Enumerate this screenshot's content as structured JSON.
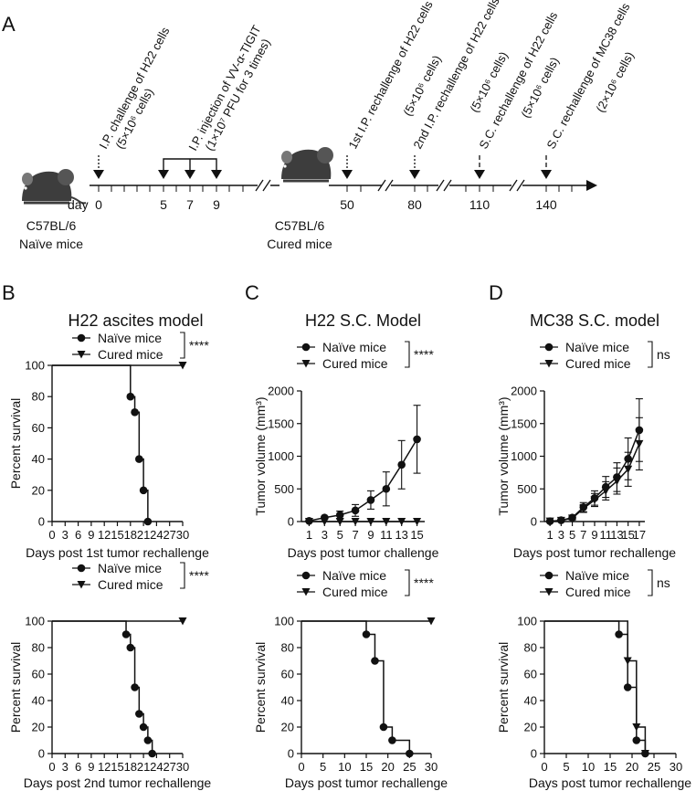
{
  "panel_labels": [
    "A",
    "B",
    "C",
    "D"
  ],
  "timeline": {
    "day_label": "day",
    "days": [
      "0",
      "5",
      "7",
      "9",
      "50",
      "80",
      "110",
      "140"
    ],
    "mouse_naive_label": "C57BL/6",
    "mouse_naive_sub": "Naïve mice",
    "mouse_cured_label": "C57BL/6",
    "mouse_cured_sub": "Cured mice",
    "annotations": [
      {
        "line1": "I.P. challenge of H22 cells",
        "line2": "(5×10⁶ cells)"
      },
      {
        "line1": "I.P. injection of VV-α-TIGIT",
        "line2": "(1×10⁷ PFU for 3 times)"
      },
      {
        "line1": "1st I.P. rechallenge of H22 cells",
        "line2": "(5×10⁶ cells)"
      },
      {
        "line1": "2nd I.P. rechallenge of H22 cells",
        "line2": "(5×10⁶ cells)"
      },
      {
        "line1": "S.C. rechallenge of H22 cells",
        "line2": "(5×10⁶ cells)"
      },
      {
        "line1": "S.C. rechallenge of MC38 cells",
        "line2": "(2×10⁶ cells)"
      }
    ]
  },
  "chart_data": [
    {
      "id": "b1",
      "type": "line",
      "step": true,
      "title": "H22 ascites model",
      "xlabel": "Days post 1st tumor rechallenge",
      "ylabel": "Percent survival",
      "xlim": [
        0,
        30
      ],
      "ylim": [
        0,
        100
      ],
      "xticks": [
        "0",
        "3",
        "6",
        "9",
        "12",
        "15",
        "18",
        "21",
        "24",
        "27",
        "30"
      ],
      "yticks": [
        "0",
        "20",
        "40",
        "60",
        "80",
        "100"
      ],
      "significance": "****",
      "series": [
        {
          "name": "Naïve mice",
          "marker": "circle",
          "x": [
            0,
            18,
            19,
            20,
            21,
            22
          ],
          "y": [
            100,
            80,
            70,
            40,
            20,
            0
          ]
        },
        {
          "name": "Cured mice",
          "marker": "triangle",
          "x": [
            0,
            30
          ],
          "y": [
            100,
            100
          ]
        }
      ]
    },
    {
      "id": "b2",
      "type": "line",
      "step": true,
      "title": "",
      "xlabel": "Days post 2nd tumor rechallenge",
      "ylabel": "Percent survival",
      "xlim": [
        0,
        30
      ],
      "ylim": [
        0,
        100
      ],
      "xticks": [
        "0",
        "3",
        "6",
        "9",
        "12",
        "15",
        "18",
        "21",
        "24",
        "27",
        "30"
      ],
      "yticks": [
        "0",
        "20",
        "40",
        "60",
        "80",
        "100"
      ],
      "significance": "****",
      "series": [
        {
          "name": "Naïve mice",
          "marker": "circle",
          "x": [
            0,
            17,
            18,
            19,
            20,
            21,
            22,
            23
          ],
          "y": [
            100,
            90,
            80,
            50,
            30,
            20,
            10,
            0
          ]
        },
        {
          "name": "Cured mice",
          "marker": "triangle",
          "x": [
            0,
            30
          ],
          "y": [
            100,
            100
          ]
        }
      ]
    },
    {
      "id": "c1",
      "type": "line",
      "step": false,
      "title": "H22 S.C. Model",
      "xlabel": "Days post tumor challenge",
      "ylabel": "Tumor volume (mm³)",
      "xlim": [
        0,
        16
      ],
      "ylim": [
        0,
        2000
      ],
      "xticks": [
        "1",
        "3",
        "5",
        "7",
        "9",
        "11",
        "13",
        "15"
      ],
      "xtick_values": [
        1,
        3,
        5,
        7,
        9,
        11,
        13,
        15
      ],
      "yticks": [
        "0",
        "500",
        "1000",
        "1500",
        "2000"
      ],
      "significance": "****",
      "series": [
        {
          "name": "Naïve mice",
          "marker": "circle",
          "x": [
            1,
            3,
            5,
            7,
            9,
            11,
            13,
            15
          ],
          "y": [
            10,
            60,
            100,
            170,
            330,
            500,
            870,
            1260
          ],
          "err": [
            5,
            20,
            60,
            90,
            140,
            260,
            370,
            520
          ]
        },
        {
          "name": "Cured mice",
          "marker": "triangle",
          "x": [
            1,
            3,
            5,
            7,
            9,
            11,
            13,
            15
          ],
          "y": [
            0,
            0,
            0,
            0,
            0,
            0,
            0,
            0
          ]
        }
      ]
    },
    {
      "id": "c2",
      "type": "line",
      "step": true,
      "title": "",
      "xlabel": "Days post tumor rechallenge",
      "ylabel": "Percent survival",
      "xlim": [
        0,
        30
      ],
      "ylim": [
        0,
        100
      ],
      "xticks": [
        "0",
        "5",
        "10",
        "15",
        "20",
        "25",
        "30"
      ],
      "yticks": [
        "0",
        "20",
        "40",
        "60",
        "80",
        "100"
      ],
      "significance": "****",
      "series": [
        {
          "name": "Naïve mice",
          "marker": "circle",
          "x": [
            0,
            15,
            17,
            19,
            21,
            25
          ],
          "y": [
            100,
            90,
            70,
            20,
            10,
            0
          ]
        },
        {
          "name": "Cured mice",
          "marker": "triangle",
          "x": [
            0,
            30
          ],
          "y": [
            100,
            100
          ]
        }
      ]
    },
    {
      "id": "d1",
      "type": "line",
      "step": false,
      "title": "MC38 S.C. model",
      "xlabel": "Days post tumor rechallenge",
      "ylabel": "Tumor volume (mm³)",
      "xlim": [
        0,
        18
      ],
      "ylim": [
        0,
        2000
      ],
      "xticks": [
        "1",
        "3",
        "5",
        "7",
        "9",
        "11",
        "13",
        "15",
        "17"
      ],
      "xtick_values": [
        1,
        3,
        5,
        7,
        9,
        11,
        13,
        15,
        17
      ],
      "yticks": [
        "0",
        "500",
        "1000",
        "1500",
        "2000"
      ],
      "significance": "ns",
      "series": [
        {
          "name": "Naïve mice",
          "marker": "circle",
          "x": [
            1,
            3,
            5,
            7,
            9,
            11,
            13,
            15,
            17
          ],
          "y": [
            5,
            20,
            60,
            220,
            360,
            530,
            680,
            960,
            1400
          ],
          "err": [
            5,
            10,
            30,
            70,
            110,
            160,
            220,
            320,
            480
          ]
        },
        {
          "name": "Cured mice",
          "marker": "triangle",
          "x": [
            1,
            3,
            5,
            7,
            9,
            11,
            13,
            15,
            17
          ],
          "y": [
            5,
            15,
            50,
            200,
            330,
            470,
            620,
            800,
            1190
          ],
          "err": [
            5,
            10,
            25,
            60,
            100,
            140,
            200,
            260,
            400
          ]
        }
      ]
    },
    {
      "id": "d2",
      "type": "line",
      "step": true,
      "title": "",
      "xlabel": "Days post tumor rechallenge",
      "ylabel": "Percent survival",
      "xlim": [
        0,
        30
      ],
      "ylim": [
        0,
        100
      ],
      "xticks": [
        "0",
        "5",
        "10",
        "15",
        "20",
        "25",
        "30"
      ],
      "yticks": [
        "0",
        "20",
        "40",
        "60",
        "80",
        "100"
      ],
      "significance": "ns",
      "series": [
        {
          "name": "Naïve mice",
          "marker": "circle",
          "x": [
            0,
            17,
            19,
            21,
            23
          ],
          "y": [
            100,
            90,
            50,
            10,
            0
          ]
        },
        {
          "name": "Cured mice",
          "marker": "triangle",
          "x": [
            0,
            19,
            21,
            23
          ],
          "y": [
            100,
            70,
            20,
            0
          ]
        }
      ]
    }
  ]
}
